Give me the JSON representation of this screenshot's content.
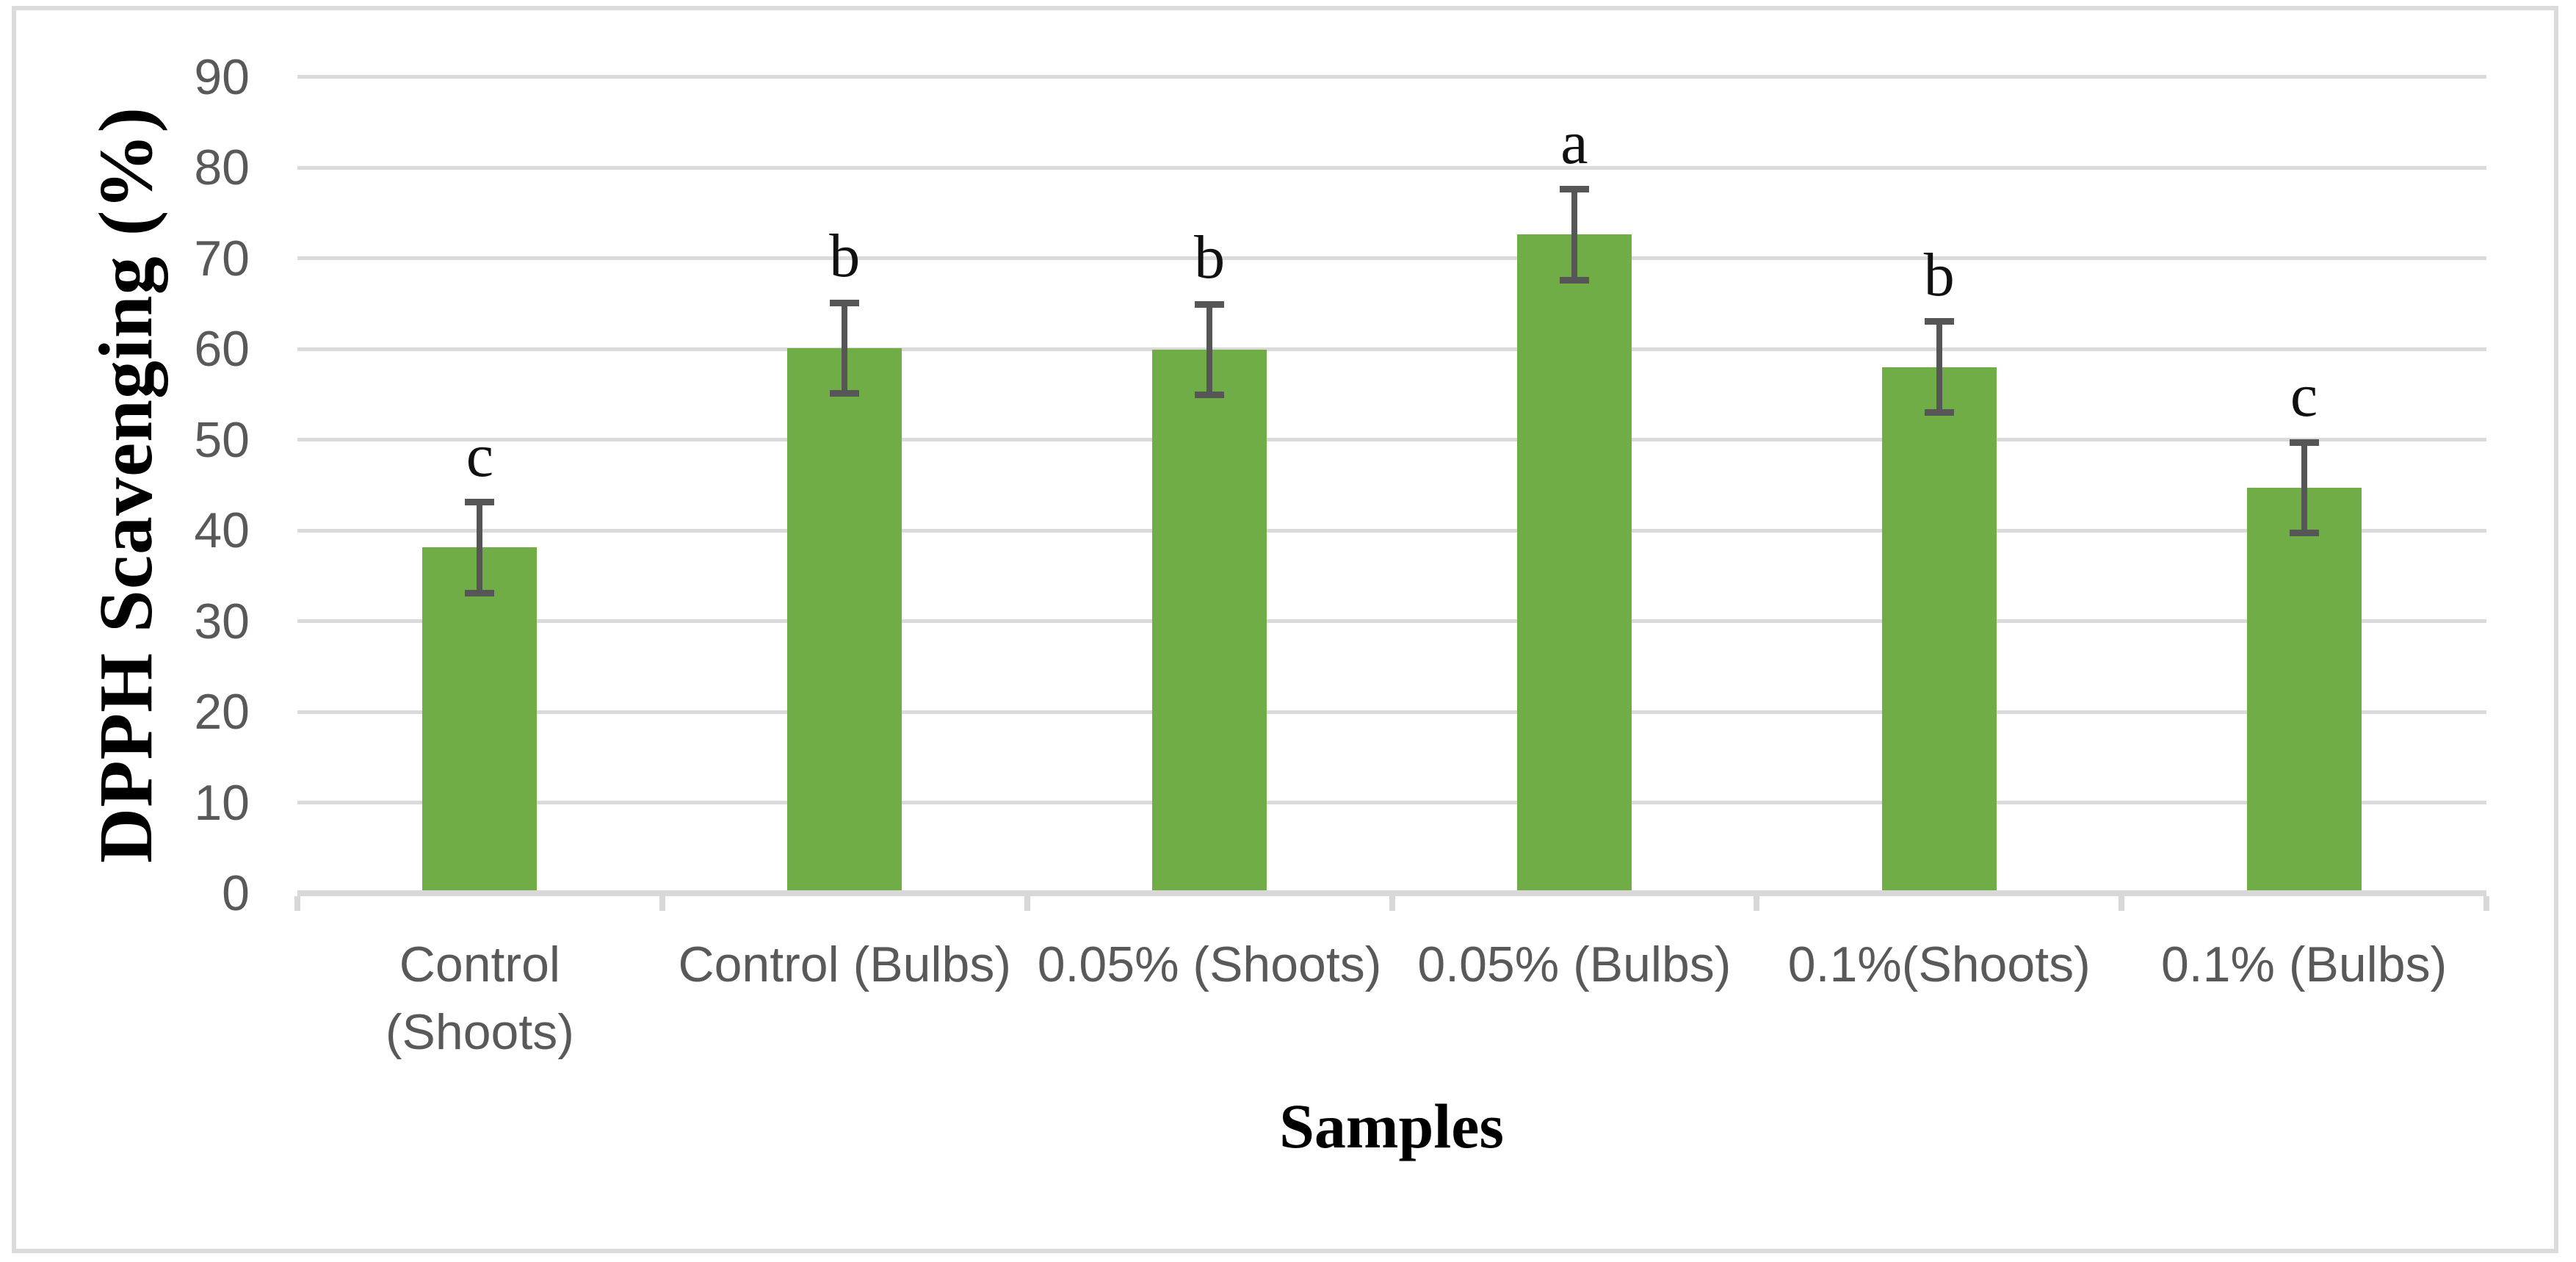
{
  "chart_data": {
    "type": "bar",
    "title": "",
    "xlabel": "Samples",
    "ylabel": "DPPH Scavenging (%)",
    "ylim": [
      0,
      90
    ],
    "ytick_step": 10,
    "grid": true,
    "legend": false,
    "categories": [
      "Control (Shoots)",
      "Control (Bulbs)",
      "0.05% (Shoots)",
      "0.05% (Bulbs)",
      "0.1%(Shoots)",
      "0.1% (Bulbs)"
    ],
    "category_lines": [
      [
        "Control",
        "(Shoots)"
      ],
      [
        "Control (Bulbs)"
      ],
      [
        "0.05% (Shoots)"
      ],
      [
        "0.05% (Bulbs)"
      ],
      [
        "0.1%(Shoots)"
      ],
      [
        "0.1% (Bulbs)"
      ]
    ],
    "series": [
      {
        "name": "DPPH Scavenging (%)",
        "values": [
          38.1,
          60.1,
          59.9,
          72.6,
          58.0,
          44.7
        ],
        "errors": [
          5,
          5,
          5,
          5,
          5,
          5
        ],
        "significance_letters": [
          "c",
          "b",
          "b",
          "a",
          "b",
          "c"
        ]
      }
    ],
    "colors": {
      "bar": "#70AD47",
      "error_bar": "#565656",
      "gridline": "#dadada",
      "axis_line": "#d8d8d8",
      "tick_label": "#595959",
      "category_label": "#595959",
      "axis_title": "#000000",
      "significance_letter": "#111111",
      "frame_border": "#dbdbdb",
      "background": "#ffffff"
    }
  }
}
